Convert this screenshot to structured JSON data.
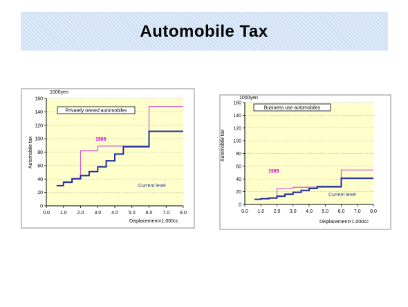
{
  "page": {
    "title": "Automobile Tax"
  },
  "chart_data": [
    {
      "type": "line",
      "step": true,
      "unit_label": "1000yen",
      "legend_box": "Privately owned automobiles",
      "xlabel": "Displacement×1,000cc",
      "ylabel": "Automobile tax",
      "xlim": [
        0,
        8
      ],
      "ylim": [
        0,
        160
      ],
      "x_ticks": [
        "0.0",
        "1.0",
        "2.0",
        "3.0",
        "4.0",
        "5.0",
        "6.0",
        "7.0",
        "8.0"
      ],
      "y_ticks": [
        "0",
        "20",
        "40",
        "60",
        "80",
        "100",
        "120",
        "140",
        "160"
      ],
      "series": [
        {
          "name": "1989",
          "color": "#d060d0",
          "points": [
            [
              0.6,
              30
            ],
            [
              1.0,
              30
            ],
            [
              1.0,
              36
            ],
            [
              1.5,
              36
            ],
            [
              1.5,
              41
            ],
            [
              2.0,
              41
            ],
            [
              2.0,
              82
            ],
            [
              3.0,
              82
            ],
            [
              3.0,
              89
            ],
            [
              6.0,
              89
            ],
            [
              6.0,
              148
            ],
            [
              8.0,
              148
            ]
          ]
        },
        {
          "name": "Current level",
          "color": "#1f2f9f",
          "points": [
            [
              0.6,
              30
            ],
            [
              1.0,
              30
            ],
            [
              1.0,
              35
            ],
            [
              1.5,
              35
            ],
            [
              1.5,
              40
            ],
            [
              2.0,
              40
            ],
            [
              2.0,
              45
            ],
            [
              2.5,
              45
            ],
            [
              2.5,
              51
            ],
            [
              3.0,
              51
            ],
            [
              3.0,
              58
            ],
            [
              3.5,
              58
            ],
            [
              3.5,
              67
            ],
            [
              4.0,
              67
            ],
            [
              4.0,
              77
            ],
            [
              4.5,
              77
            ],
            [
              4.5,
              88
            ],
            [
              6.0,
              88
            ],
            [
              6.0,
              111
            ],
            [
              8.0,
              111
            ]
          ]
        }
      ]
    },
    {
      "type": "line",
      "step": true,
      "unit_label": "1000yen",
      "legend_box": "Business use automobiles",
      "xlabel": "Displacement×1,000cc",
      "ylabel": "Automobile tax",
      "xlim": [
        0,
        8
      ],
      "ylim": [
        0,
        160
      ],
      "x_ticks": [
        "0.0",
        "1.0",
        "2.0",
        "3.0",
        "4.0",
        "5.0",
        "6.0",
        "7.0",
        "8.0"
      ],
      "y_ticks": [
        "0",
        "20",
        "40",
        "60",
        "80",
        "100",
        "120",
        "140",
        "160"
      ],
      "series": [
        {
          "name": "1989",
          "color": "#d060d0",
          "points": [
            [
              0.6,
              8
            ],
            [
              1.0,
              8
            ],
            [
              1.0,
              9
            ],
            [
              1.5,
              9
            ],
            [
              1.5,
              10
            ],
            [
              2.0,
              10
            ],
            [
              2.0,
              25
            ],
            [
              3.0,
              25
            ],
            [
              3.0,
              27
            ],
            [
              6.0,
              27
            ],
            [
              6.0,
              54
            ],
            [
              8.0,
              54
            ]
          ]
        },
        {
          "name": "Current level",
          "color": "#1f2f9f",
          "points": [
            [
              0.6,
              8
            ],
            [
              1.0,
              8
            ],
            [
              1.0,
              9
            ],
            [
              1.5,
              9
            ],
            [
              1.5,
              10
            ],
            [
              2.0,
              10
            ],
            [
              2.0,
              13
            ],
            [
              2.5,
              13
            ],
            [
              2.5,
              16
            ],
            [
              3.0,
              16
            ],
            [
              3.0,
              19
            ],
            [
              3.5,
              19
            ],
            [
              3.5,
              22
            ],
            [
              4.0,
              22
            ],
            [
              4.0,
              25
            ],
            [
              4.5,
              25
            ],
            [
              4.5,
              28
            ],
            [
              6.0,
              28
            ],
            [
              6.0,
              41
            ],
            [
              8.0,
              41
            ]
          ]
        }
      ]
    }
  ]
}
